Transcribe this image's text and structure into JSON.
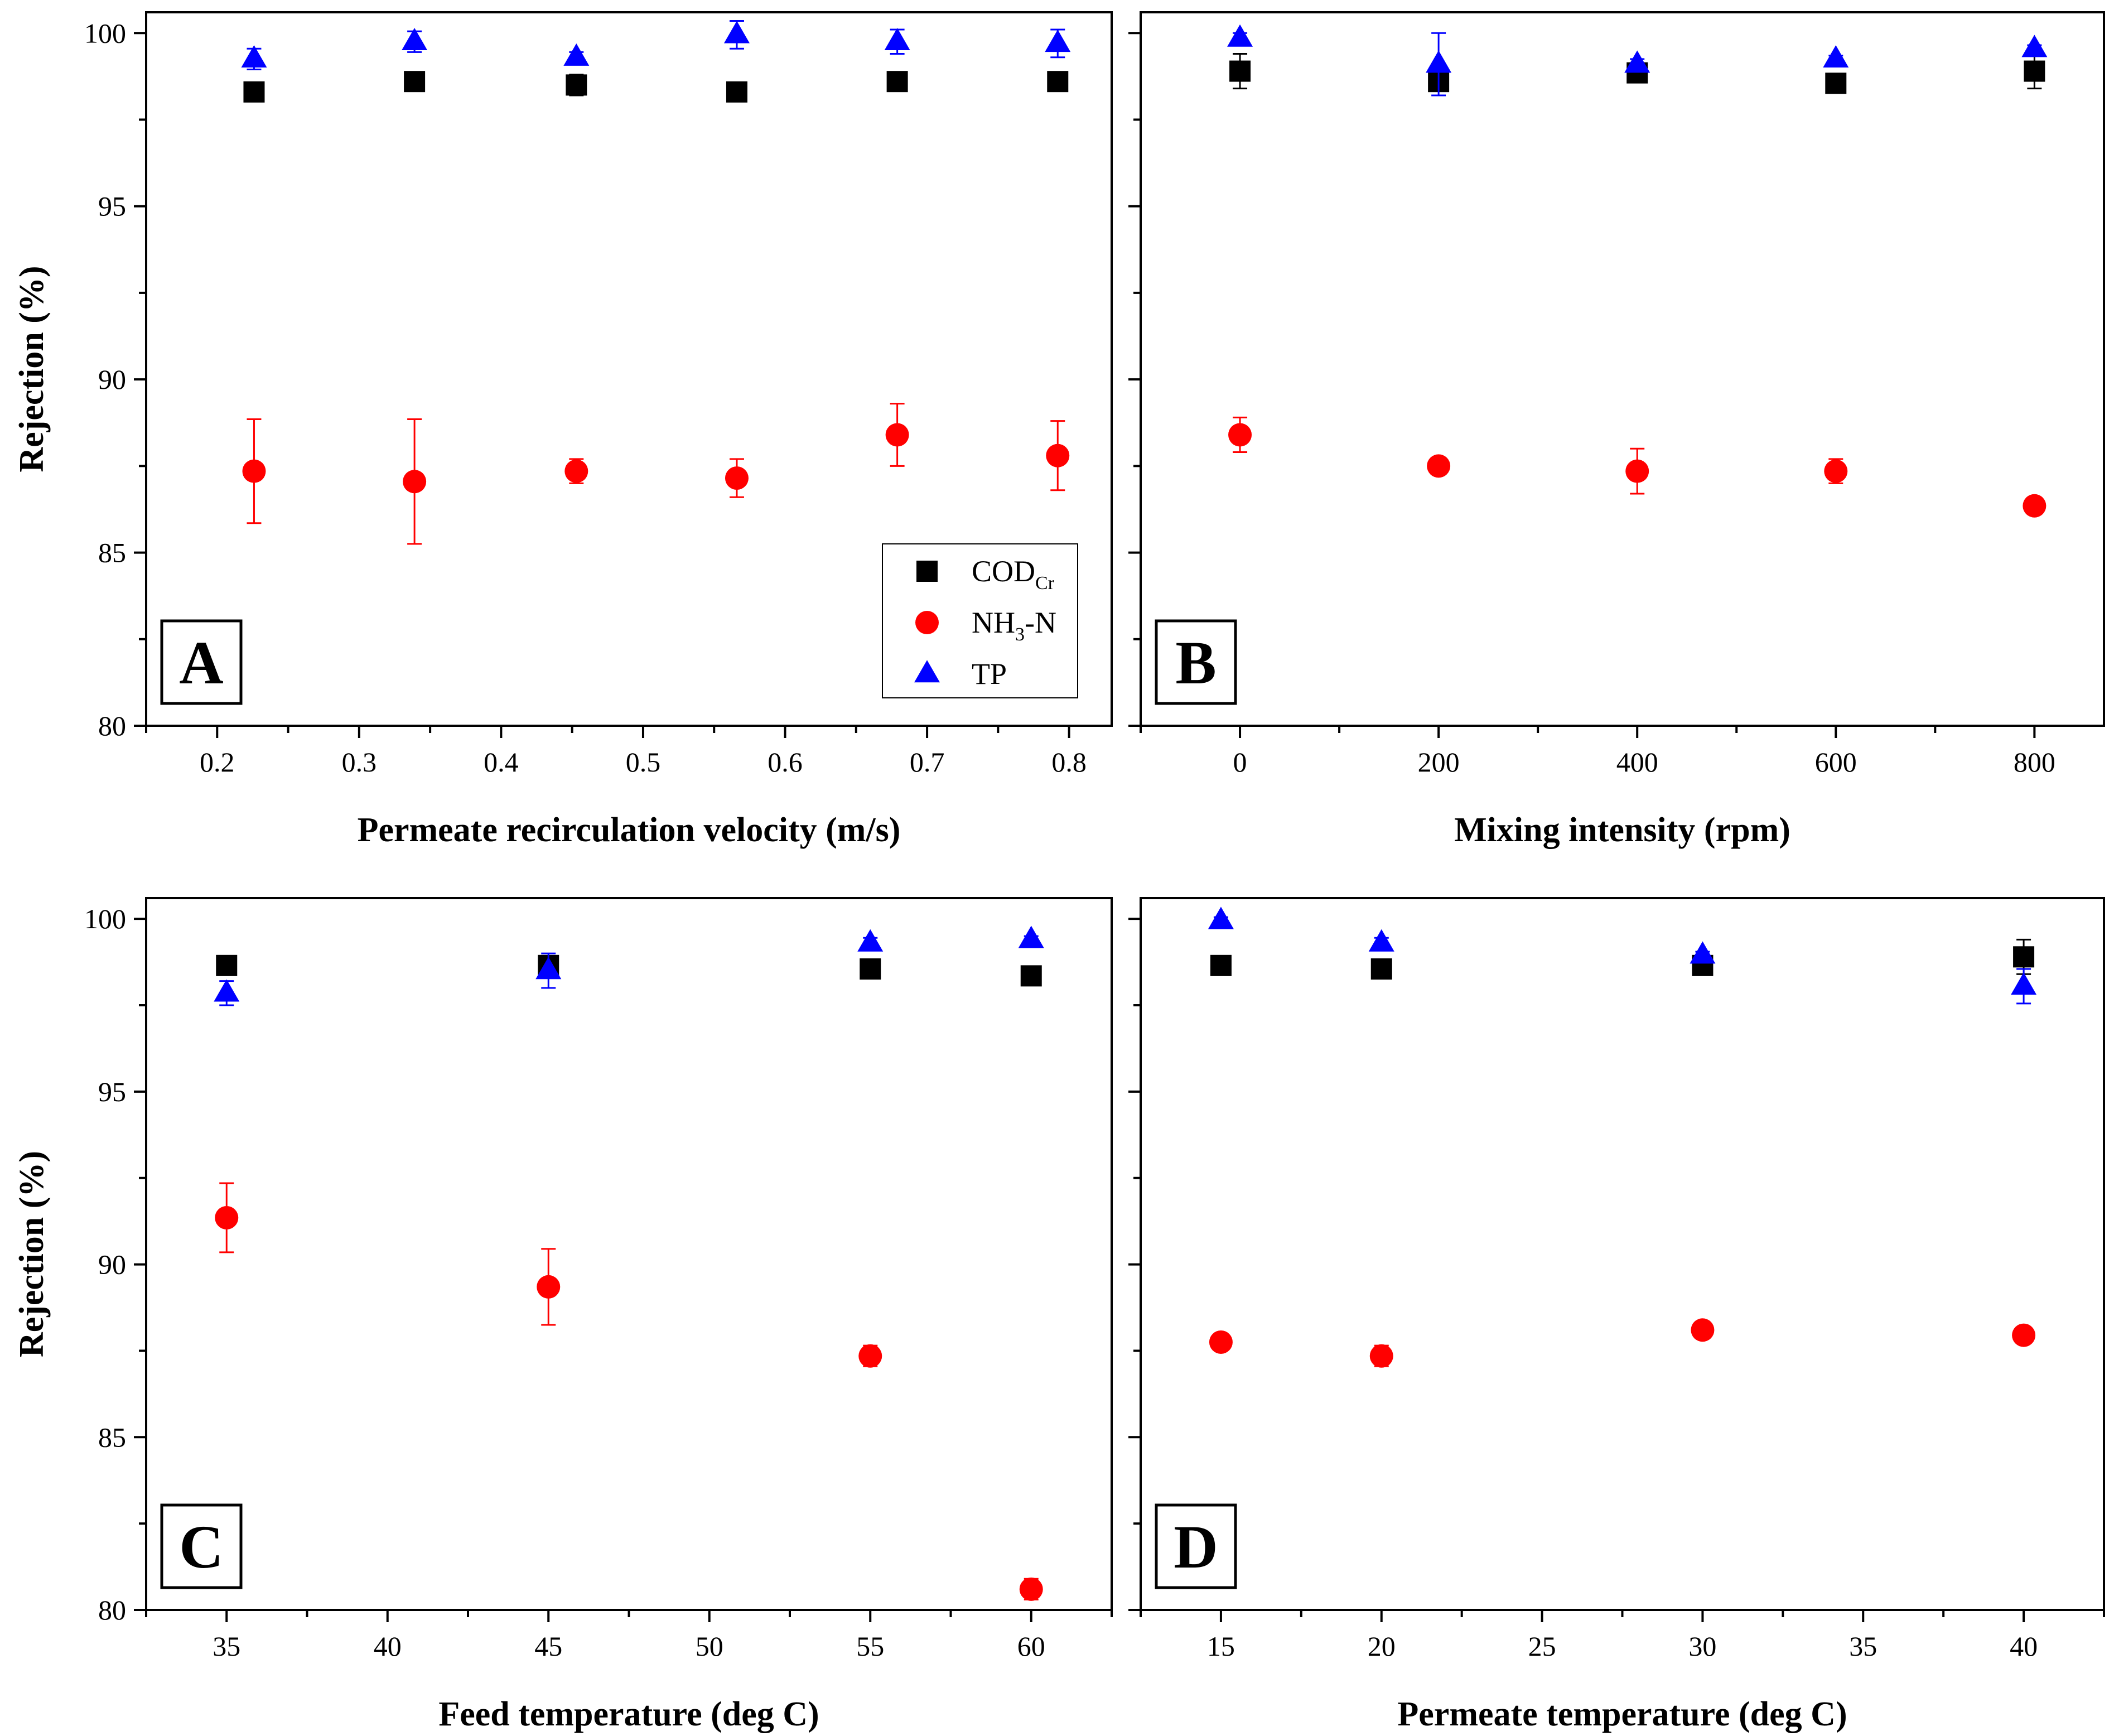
{
  "figure": {
    "ylabel": "Rejection (%)"
  },
  "legend": {
    "items": [
      {
        "name": "COD",
        "sub": "Cr",
        "suffix": "",
        "marker": "square",
        "color": "#000000"
      },
      {
        "name": "NH",
        "sub": "3",
        "suffix": "-N",
        "marker": "circle",
        "color": "#ff0000"
      },
      {
        "name": "TP",
        "sub": "",
        "suffix": "",
        "marker": "triangle",
        "color": "#0000ff"
      }
    ]
  },
  "chart_data": [
    {
      "type": "scatter",
      "panel": "A",
      "xlabel": "Permeate recirculation velocity (m/s)",
      "ylabel": "Rejection (%)",
      "xlim": [
        0.15,
        0.83
      ],
      "ylim": [
        80,
        100.6
      ],
      "xticks": [
        "0.2",
        "0.3",
        "0.4",
        "0.5",
        "0.6",
        "0.7",
        "0.8"
      ],
      "xtick_values": [
        0.2,
        0.3,
        0.4,
        0.5,
        0.6,
        0.7,
        0.8
      ],
      "yticks": [
        "80",
        "85",
        "90",
        "95",
        "100"
      ],
      "ytick_values": [
        80,
        85,
        90,
        95,
        100
      ],
      "x": [
        0.226,
        0.339,
        0.453,
        0.566,
        0.679,
        0.792
      ],
      "series": [
        {
          "name": "CODCr",
          "values": [
            98.3,
            98.6,
            98.5,
            98.3,
            98.6,
            98.6
          ],
          "errors": [
            0.2,
            0.1,
            0.3,
            0.1,
            0.1,
            0.1
          ]
        },
        {
          "name": "NH3-N",
          "values": [
            87.35,
            87.05,
            87.35,
            87.15,
            88.4,
            87.8
          ],
          "errors": [
            1.5,
            1.8,
            0.35,
            0.55,
            0.9,
            1.0
          ]
        },
        {
          "name": "TP",
          "values": [
            99.25,
            99.75,
            99.3,
            99.95,
            99.75,
            99.7
          ],
          "errors": [
            0.3,
            0.3,
            0.15,
            0.4,
            0.35,
            0.4
          ]
        }
      ],
      "show_legend": true
    },
    {
      "type": "scatter",
      "panel": "B",
      "xlabel": "Mixing intensity (rpm)",
      "ylabel": "",
      "xlim": [
        -100,
        870
      ],
      "ylim": [
        80,
        100.6
      ],
      "xticks": [
        "0",
        "200",
        "400",
        "600",
        "800"
      ],
      "xtick_values": [
        0,
        200,
        400,
        600,
        800
      ],
      "yticks": [],
      "ytick_values": [
        80,
        85,
        90,
        95,
        100
      ],
      "x": [
        0,
        200,
        400,
        600,
        800
      ],
      "series": [
        {
          "name": "CODCr",
          "values": [
            98.9,
            98.6,
            98.85,
            98.55,
            98.9
          ],
          "errors": [
            0.5,
            0.2,
            0.15,
            0.2,
            0.5
          ]
        },
        {
          "name": "NH3-N",
          "values": [
            88.4,
            87.5,
            87.35,
            87.35,
            86.35
          ],
          "errors": [
            0.5,
            0.1,
            0.65,
            0.35,
            0.1
          ]
        },
        {
          "name": "TP",
          "values": [
            99.85,
            99.1,
            99.1,
            99.25,
            99.55
          ],
          "errors": [
            0.15,
            0.9,
            0.15,
            0.1,
            0.1
          ]
        }
      ],
      "show_legend": false
    },
    {
      "type": "scatter",
      "panel": "C",
      "xlabel": "Feed temperature (deg C)",
      "ylabel": "Rejection (%)",
      "xlim": [
        32.5,
        62.5
      ],
      "ylim": [
        80,
        100.6
      ],
      "xticks": [
        "35",
        "40",
        "45",
        "50",
        "55",
        "60"
      ],
      "xtick_values": [
        35,
        40,
        45,
        50,
        55,
        60
      ],
      "yticks": [
        "80",
        "85",
        "90",
        "95",
        "100"
      ],
      "ytick_values": [
        80,
        85,
        90,
        95,
        100
      ],
      "x": [
        35,
        45,
        55,
        60
      ],
      "series": [
        {
          "name": "CODCr",
          "values": [
            98.65,
            98.65,
            98.55,
            98.35
          ],
          "errors": [
            0.1,
            0.15,
            0.25,
            0.1
          ]
        },
        {
          "name": "NH3-N",
          "values": [
            91.35,
            89.35,
            87.35,
            80.6
          ],
          "errors": [
            1.0,
            1.1,
            0.3,
            0.3
          ]
        },
        {
          "name": "TP",
          "values": [
            97.85,
            98.5,
            99.3,
            99.4
          ],
          "errors": [
            0.35,
            0.5,
            0.15,
            0.1
          ]
        }
      ],
      "show_legend": false
    },
    {
      "type": "scatter",
      "panel": "D",
      "xlabel": "Permeate temperature (deg C)",
      "ylabel": "",
      "xlim": [
        12.5,
        42.5
      ],
      "ylim": [
        80,
        100.6
      ],
      "xticks": [
        "15",
        "20",
        "25",
        "30",
        "35",
        "40"
      ],
      "xtick_values": [
        15,
        20,
        25,
        30,
        35,
        40
      ],
      "yticks": [],
      "ytick_values": [
        80,
        85,
        90,
        95,
        100
      ],
      "x": [
        15,
        20,
        30,
        40
      ],
      "series": [
        {
          "name": "CODCr",
          "values": [
            98.65,
            98.55,
            98.65,
            98.9
          ],
          "errors": [
            0.1,
            0.2,
            0.1,
            0.5
          ]
        },
        {
          "name": "NH3-N",
          "values": [
            87.75,
            87.35,
            88.1,
            87.95
          ],
          "errors": [
            0.1,
            0.3,
            0.1,
            0.1
          ]
        },
        {
          "name": "TP",
          "values": [
            99.95,
            99.3,
            98.95,
            98.05
          ],
          "errors": [
            0.1,
            0.15,
            0.1,
            0.5
          ]
        }
      ],
      "show_legend": false
    }
  ]
}
